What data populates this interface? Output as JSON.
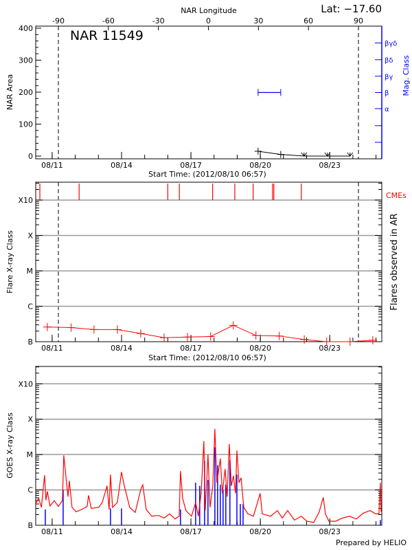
{
  "header": {
    "lat_label": "Lat: −17.60",
    "region_title": "NAR 11549",
    "prepared_by": "Prepared by HELIO"
  },
  "colors": {
    "flux": "#ff0000",
    "flare_events": "#0000ff",
    "mag_class": "#0000ff",
    "cme": "#ff0000",
    "grid": "#999999"
  },
  "time_axis": {
    "start": "2012-08-10T06:57",
    "end": "2012-08-25T06:00",
    "tick_labels": [
      "08/11",
      "08/14",
      "08/17",
      "08/20",
      "08/23"
    ],
    "tick_dates": [
      "2012-08-11",
      "2012-08-14",
      "2012-08-17",
      "2012-08-20",
      "2012-08-23"
    ],
    "minor_tick_interval": "1 day",
    "title": "Start Time: (2012/08/10 06:57)"
  },
  "chart_data": [
    {
      "type": "line",
      "panel": "area",
      "ylabel": "NAR Area",
      "ylim": [
        0,
        400
      ],
      "yticks": [
        "0",
        "100",
        "200",
        "300",
        "400"
      ],
      "top_axis": {
        "title": "NAR Longitude",
        "lim": [
          -103.6,
          104.0
        ],
        "ticks": [
          "-90",
          "-60",
          "-30",
          "0",
          "30",
          "60",
          "90"
        ]
      },
      "limb_longitudes": [
        -90,
        90
      ],
      "series": [
        {
          "x": [
            "2012-08-19T21:40",
            "2012-08-20T21:10",
            "2012-08-21T21:20",
            "2012-08-22T21:35",
            "2012-08-23T21:05"
          ],
          "y": [
            15,
            5,
            0,
            0,
            0
          ],
          "markers": [
            "plus",
            "plus",
            "down-arrow",
            "down-arrow",
            "down-arrow"
          ]
        }
      ],
      "right_axis": {
        "title": "Mag. Class",
        "classes": [
          "βγδ",
          "βδ",
          "βγ",
          "β",
          "α",
          "",
          ""
        ],
        "mag_class_segments": [
          {
            "start": "2012-08-19T21:40",
            "end": "2012-08-20T21:10",
            "class": "β"
          }
        ]
      }
    },
    {
      "type": "line",
      "panel": "flares",
      "ylabel": "Flare X-ray Class",
      "right_label": "Flares observed in AR",
      "scale": "log",
      "ylim": [
        1e-07,
        0.0032
      ],
      "yticks": [
        "B",
        "C",
        "M",
        "X",
        "X10"
      ],
      "grid": true,
      "series": [
        {
          "x": [
            "2012-08-10T19:00",
            "2012-08-11T19:40",
            "2012-08-12T19:25",
            "2012-08-13T19:40",
            "2012-08-14T19:55",
            "2012-08-15T20:10",
            "2012-08-16T20:25",
            "2012-08-17T20:25",
            "2012-08-18T19:55",
            "2012-08-19T19:25",
            "2012-08-20T19:40",
            "2012-08-21T21:35",
            "2012-08-22T20:50",
            "2012-08-23T21:05",
            "2012-08-24T20:40"
          ],
          "y": [
            2.6e-07,
            2.5e-07,
            2.2e-07,
            2.2e-07,
            1.7e-07,
            1.3e-07,
            1.35e-07,
            1.4e-07,
            2.9e-07,
            1.5e-07,
            1.45e-07,
            1.15e-07,
            1e-07,
            1e-07,
            1.1e-07
          ]
        }
      ],
      "cme_label": "CMEs",
      "cme_times": [
        "2012-08-10T11:15",
        "2012-08-12T04:00",
        "2012-08-16T00:00",
        "2012-08-16T12:00",
        "2012-08-17T22:30",
        "2012-08-18T21:30",
        "2012-08-19T16:30",
        "2012-08-20T12:40",
        "2012-08-20T14:00",
        "2012-08-21T18:30"
      ]
    },
    {
      "type": "line",
      "panel": "goes",
      "ylabel": "GOES X-ray Class",
      "scale": "log",
      "ylim": [
        1e-07,
        0.0031
      ],
      "yticks": [
        "B",
        "C",
        "M",
        "X",
        "X10"
      ],
      "grid": true,
      "series": [
        {
          "x": [
            "2012-08-10T06:57",
            "2012-08-10T10:00",
            "2012-08-10T12:50",
            "2012-08-10T16:10",
            "2012-08-10T17:35",
            "2012-08-10T19:00",
            "2012-08-10T21:50",
            "2012-08-11T02:10",
            "2012-08-11T06:25",
            "2012-08-11T10:40",
            "2012-08-11T12:05",
            "2012-08-11T14:15",
            "2012-08-11T16:25",
            "2012-08-11T17:50",
            "2012-08-11T20:40",
            "2012-08-12T01:00",
            "2012-08-12T06:40",
            "2012-08-12T12:20",
            "2012-08-12T13:45",
            "2012-08-12T16:35",
            "2012-08-13T00:25",
            "2012-08-13T04:00",
            "2012-08-13T09:00",
            "2012-08-13T11:05",
            "2012-08-13T12:30",
            "2012-08-13T14:40",
            "2012-08-13T19:40",
            "2012-08-14T00:00",
            "2012-08-14T02:50",
            "2012-08-14T08:30",
            "2012-08-14T14:10",
            "2012-08-14T19:50",
            "2012-08-14T22:00",
            "2012-08-15T01:35",
            "2012-08-15T07:15",
            "2012-08-15T14:25",
            "2012-08-15T20:05",
            "2012-08-16T01:50",
            "2012-08-16T07:30",
            "2012-08-16T11:45",
            "2012-08-16T13:10",
            "2012-08-16T15:20",
            "2012-08-16T18:50",
            "2012-08-17T00:35",
            "2012-08-17T04:50",
            "2012-08-17T07:40",
            "2012-08-17T10:35",
            "2012-08-17T13:25",
            "2012-08-17T14:50",
            "2012-08-17T17:40",
            "2012-08-17T19:50",
            "2012-08-17T22:40",
            "2012-08-18T00:50",
            "2012-08-18T02:55",
            "2012-08-18T06:30",
            "2012-08-18T08:35",
            "2012-08-18T11:25",
            "2012-08-18T13:35",
            "2012-08-18T15:45",
            "2012-08-18T17:55",
            "2012-08-18T20:05",
            "2012-08-18T22:15",
            "2012-08-18T23:40",
            "2012-08-19T01:50",
            "2012-08-19T04:00",
            "2012-08-19T06:50",
            "2012-08-19T11:05",
            "2012-08-19T16:45",
            "2012-08-19T23:50",
            "2012-08-20T02:00",
            "2012-08-20T10:30",
            "2012-08-20T17:40",
            "2012-08-20T22:40",
            "2012-08-21T04:20",
            "2012-08-21T11:25",
            "2012-08-21T18:30",
            "2012-08-22T00:15",
            "2012-08-22T07:25",
            "2012-08-22T13:05",
            "2012-08-22T17:20",
            "2012-08-22T19:30",
            "2012-08-22T23:05",
            "2012-08-23T06:10",
            "2012-08-23T13:20",
            "2012-08-23T20:25",
            "2012-08-24T03:35",
            "2012-08-24T10:40",
            "2012-08-24T17:50",
            "2012-08-24T23:30",
            "2012-08-25T03:05",
            "2012-08-25T04:30",
            "2012-08-25T05:15"
          ],
          "y": [
            4.1e-07,
            5.8e-07,
            3.2e-07,
            2.6e-06,
            5.1e-07,
            9.1e-07,
            3.5e-07,
            5e-07,
            3.4e-07,
            5e-07,
            9.5e-06,
            2.5e-06,
            6.4e-07,
            1.8e-06,
            3.2e-07,
            2.4e-07,
            2.8e-07,
            3.4e-07,
            7e-07,
            3e-07,
            3.2e-07,
            4.4e-07,
            1.3e-06,
            2.8e-07,
            2.7e-06,
            3.2e-07,
            4.4e-07,
            3.2e-06,
            1.3e-06,
            3.2e-07,
            2.3e-07,
            1e-06,
            1.4e-06,
            2.8e-07,
            1.8e-07,
            1.9e-07,
            1.6e-07,
            2.1e-07,
            1.5e-07,
            1.8e-07,
            3.4e-06,
            5.8e-07,
            2.6e-07,
            1.8e-07,
            4.4e-07,
            1.8e-07,
            8e-07,
            2.4e-05,
            2.6e-07,
            1e-05,
            3.2e-07,
            1.3e-06,
            5.3e-05,
            1.6e-06,
            7.7e-06,
            8e-07,
            3.9e-06,
            6.4e-07,
            2e-05,
            1.3e-06,
            2.5e-06,
            8e-07,
            1.3e-05,
            1.6e-06,
            2.2e-06,
            3.2e-07,
            2.1e-07,
            1.8e-07,
            8e-07,
            2.1e-07,
            1.8e-07,
            2.6e-07,
            1.6e-07,
            2.6e-07,
            1.4e-07,
            1.8e-07,
            1.3e-07,
            1.2e-07,
            2.4e-07,
            6.1e-07,
            2.1e-07,
            1.3e-07,
            1.3e-07,
            1.6e-07,
            1.8e-07,
            1.5e-07,
            2.2e-07,
            2.6e-07,
            2.1e-07,
            2.1e-07,
            1.6e-06,
            2.4e-07
          ]
        }
      ],
      "flare_events": {
        "x": [
          "2012-08-10T16:55",
          "2012-08-11T11:25",
          "2012-08-13T12:30",
          "2012-08-14T00:00",
          "2012-08-16T13:10",
          "2012-08-17T04:50",
          "2012-08-17T09:05",
          "2012-08-17T14:10",
          "2012-08-17T17:40",
          "2012-08-18T00:50",
          "2012-08-18T03:40",
          "2012-08-18T06:30",
          "2012-08-18T09:20",
          "2012-08-18T12:10",
          "2012-08-18T16:25",
          "2012-08-18T23:40",
          "2012-08-19T03:15",
          "2012-08-19T06:05",
          "2012-08-25T04:30"
        ],
        "y": [
          2.8e-07,
          1e-06,
          3e-07,
          3e-07,
          2.8e-07,
          1.6e-06,
          1.3e-06,
          6.6e-06,
          1.9e-06,
          1.6e-05,
          5e-06,
          1.4e-06,
          1e-06,
          1.4e-06,
          7e-06,
          2.7e-06,
          4e-07,
          4e-07,
          1.4e-07
        ]
      }
    }
  ]
}
